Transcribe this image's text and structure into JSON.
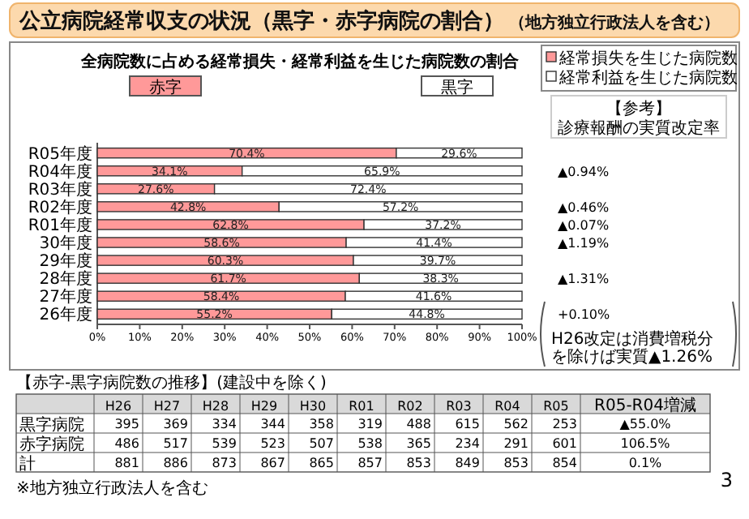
{
  "chart_data": {
    "type": "bar",
    "orientation": "horizontal",
    "stacked": true,
    "title": "公立病院経常収支の状況（黒字・赤字病院の割合）",
    "subtitle": "（地方独立行政法人を含む）",
    "categories": [
      "R05年度",
      "R04年度",
      "R03年度",
      "R02年度",
      "R01年度",
      "30年度",
      "29年度",
      "28年度",
      "27年度",
      "26年度"
    ],
    "series": [
      {
        "name": "経常損失を生じた病院数",
        "color": "#ff9999",
        "values": [
          70.4,
          34.1,
          27.6,
          42.8,
          62.8,
          58.6,
          60.3,
          61.7,
          58.4,
          55.2
        ],
        "value_labels": [
          "70.4%",
          "34.1%",
          "27.6%",
          "42.8%",
          "62.8%",
          "58.6%",
          "60.3%",
          "61.7%",
          "58.4%",
          "55.2%"
        ]
      },
      {
        "name": "経常利益を生じた病院数",
        "color": "#ffffff",
        "values": [
          29.6,
          65.9,
          72.4,
          57.2,
          37.2,
          41.4,
          39.7,
          38.3,
          41.6,
          44.8
        ],
        "value_labels": [
          "29.6%",
          "65.9%",
          "72.4%",
          "57.2%",
          "37.2%",
          "41.4%",
          "39.7%",
          "38.3%",
          "41.6%",
          "44.8%"
        ]
      }
    ],
    "xlim": [
      0,
      100
    ],
    "xticks": [
      {
        "value": 0,
        "label": "0%"
      },
      {
        "value": 10,
        "label": "10%"
      },
      {
        "value": 20,
        "label": "20%"
      },
      {
        "value": 30,
        "label": "30%"
      },
      {
        "value": 40,
        "label": "40%"
      },
      {
        "value": 50,
        "label": "50%"
      },
      {
        "value": 60,
        "label": "60%"
      },
      {
        "value": 70,
        "label": "70%"
      },
      {
        "value": 80,
        "label": "80%"
      },
      {
        "value": 90,
        "label": "90%"
      },
      {
        "value": 100,
        "label": "100%"
      }
    ],
    "legend": "top right",
    "annotations": [
      "全病院数に占める経常損失・経常利益を生じた病院数の割合",
      "赤字",
      "黒字",
      "【参考】",
      "診療報酬の実質改定率",
      "▲0.94%",
      "▲0.46%",
      "▲0.07%",
      "▲1.19%",
      "▲1.31%",
      "+0.10%",
      "H26改定は消費増税分を除けば実質▲1.26%",
      "3",
      "【赤字-黒字病院数の推移】(建設中を除く)",
      "H26",
      "H27",
      "H28",
      "H29",
      "H30",
      "R01",
      "R02",
      "R03",
      "R04",
      "R05",
      "R05-R04増減",
      "黒字病院",
      "395",
      "369",
      "334",
      "344",
      "358",
      "319",
      "488",
      "615",
      "562",
      "253",
      "▲55.0%",
      "赤字病院",
      "486",
      "517",
      "539",
      "523",
      "507",
      "538",
      "365",
      "234",
      "291",
      "601",
      "106.5%",
      "計",
      "881",
      "886",
      "873",
      "867",
      "865",
      "857",
      "853",
      "849",
      "853",
      "854",
      "0.1%",
      "※地方独立行政法人を含む"
    ]
  }
}
